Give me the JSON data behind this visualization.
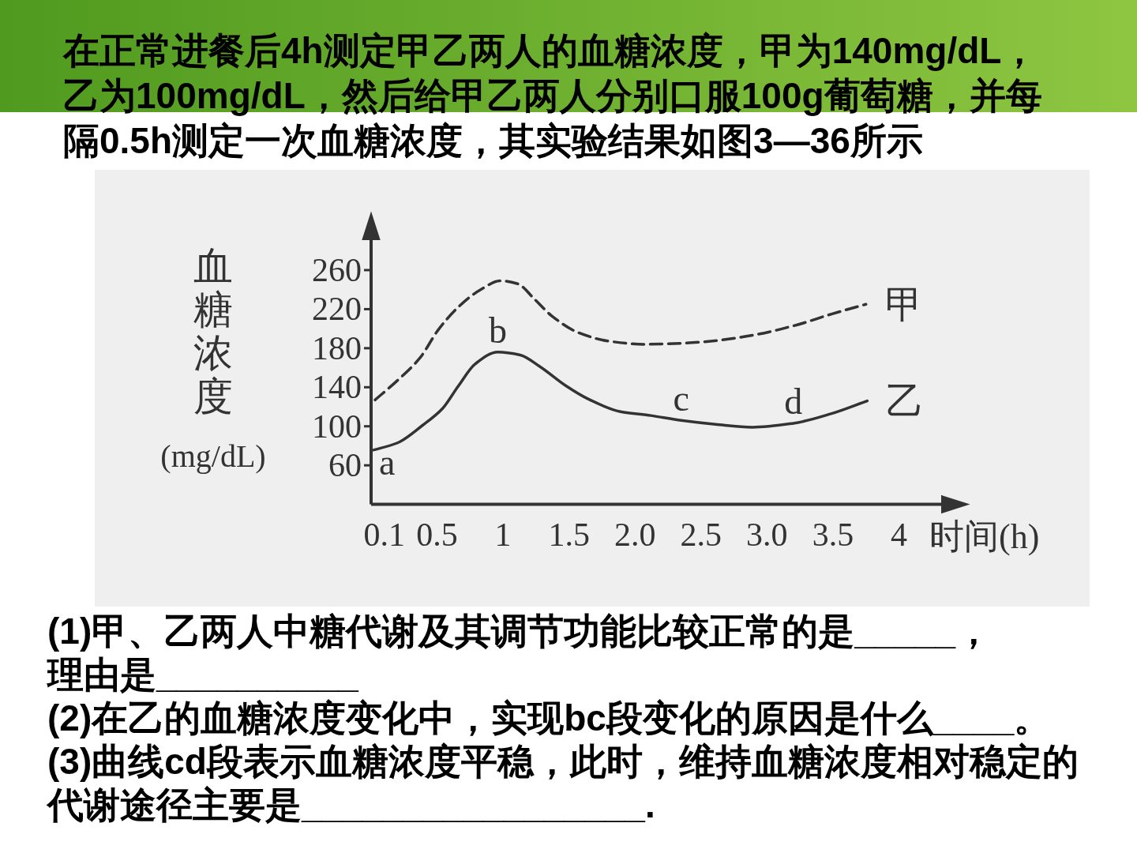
{
  "chart_data": {
    "type": "line",
    "title": "在正常进餐后4h测定甲乙两人的血糖浓度，甲为140mg/dL，乙为100mg/dL，然后给甲乙两人分别口服100g葡萄糖，并每隔0.5h测定一次血糖浓度，其实验结果如图3—36所示",
    "xlabel": "时间(h)",
    "ylabel": "血糖浓度(mg/dL)",
    "xlim": [
      0,
      4.5
    ],
    "xticks": [
      0.1,
      0.5,
      1,
      1.5,
      {
        "value": 2,
        "label": "2.0"
      },
      2.5,
      {
        "value": 3,
        "label": "3.0"
      },
      3.5,
      4
    ],
    "ylim": [
      20,
      315
    ],
    "yticks": [
      60,
      100,
      140,
      180,
      220,
      260
    ],
    "series": [
      {
        "name": "甲",
        "color": "#333333",
        "line_style": "dashed",
        "x": [
          0.03,
          0.2,
          0.37,
          0.51,
          0.66,
          0.83,
          0.98,
          1.11,
          1.24,
          1.37,
          1.57,
          1.81,
          2.07,
          2.35,
          2.63,
          2.92,
          3.23,
          3.49,
          3.75
        ],
        "values": [
          127,
          147,
          170,
          199,
          222,
          240,
          249,
          246,
          230,
          213,
          196,
          187,
          184,
          185,
          188,
          194,
          204,
          215,
          225
        ]
      },
      {
        "name": "乙",
        "color": "#333333",
        "line_style": "solid",
        "x": [
          0,
          0.2,
          0.39,
          0.54,
          0.66,
          0.79,
          0.96,
          1.13,
          1.28,
          1.47,
          1.63,
          1.89,
          2.12,
          2.35,
          2.61,
          2.89,
          3.2,
          3.49,
          3.76
        ],
        "values": [
          75,
          83,
          101,
          118,
          141,
          164,
          176,
          173,
          161,
          142,
          129,
          115,
          111,
          106,
          102,
          99,
          103,
          113,
          126
        ]
      }
    ],
    "annotations": [
      {
        "text": "a",
        "x": 0,
        "y": 75
      },
      {
        "text": "b",
        "x": 0.96,
        "y": 176
      },
      {
        "text": "c",
        "x": 2.35,
        "y": 106
      },
      {
        "text": "d",
        "x": 3.2,
        "y": 103
      },
      "(1)甲、乙两人中糖代谢及其调节功能比较正常的是_____，",
      "理由是__________",
      "(2)在乙的血糖浓度变化中，实现bc段变化的原因是什么____。",
      "(3)曲线cd段表示血糖浓度平稳，此时，维持血糖浓度相对稳定的代谢途径主要是_________________."
    ]
  }
}
